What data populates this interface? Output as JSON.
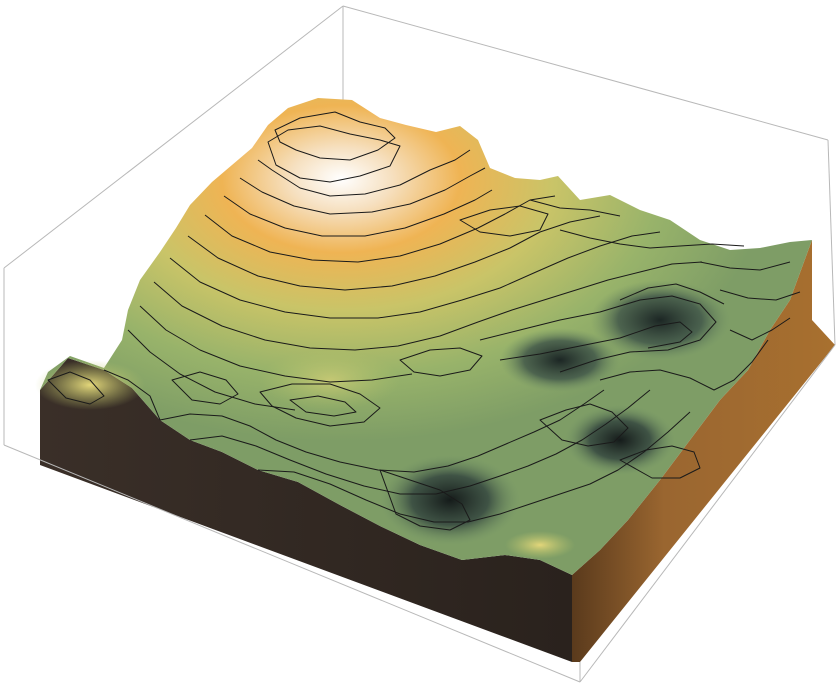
{
  "figure": {
    "type": "3d-terrain-surface",
    "box_color": "#b8b8b8",
    "contour_color": "#1a1a1a",
    "colors": {
      "peak": "#ffffff",
      "high": "#f0b550",
      "mid": "#c5c56a",
      "low": "#8fae6a",
      "valley": "#2a3a38",
      "side_front": "#2e2621",
      "side_right": "#8a5a28"
    }
  }
}
